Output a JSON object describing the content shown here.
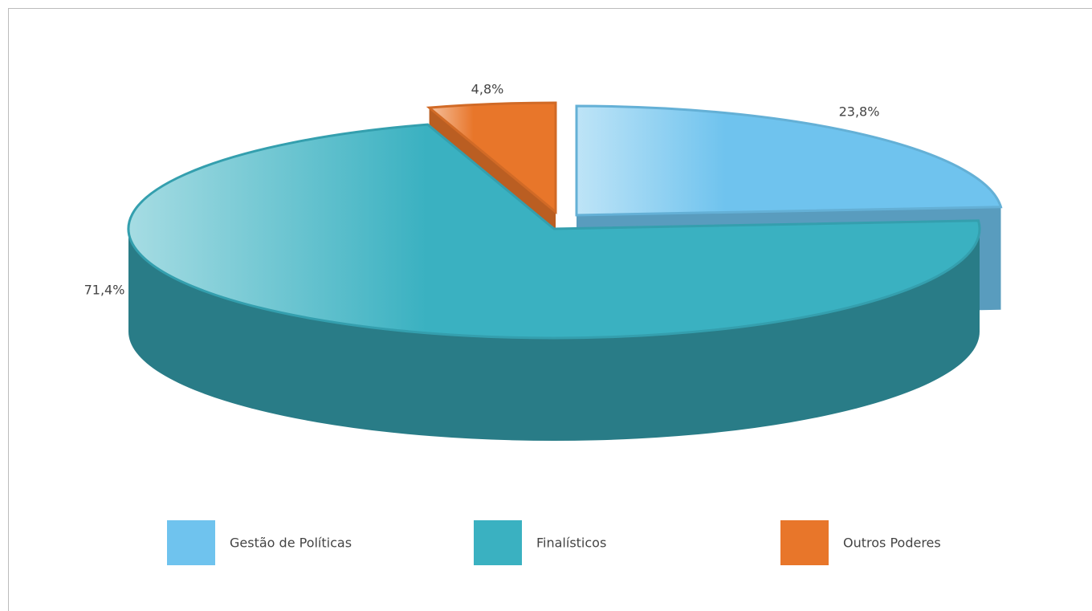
{
  "chart_data": {
    "type": "pie",
    "categories": [
      "Gestão de Políticas",
      "Finalísticos",
      "Outros Poderes"
    ],
    "values": [
      23.8,
      71.4,
      4.8
    ],
    "value_labels": [
      "23,8%",
      "71,4%",
      "4,8%"
    ],
    "colors": [
      "#6fc3ee",
      "#3ab1c1",
      "#e8762a"
    ],
    "legend": "bottom"
  }
}
